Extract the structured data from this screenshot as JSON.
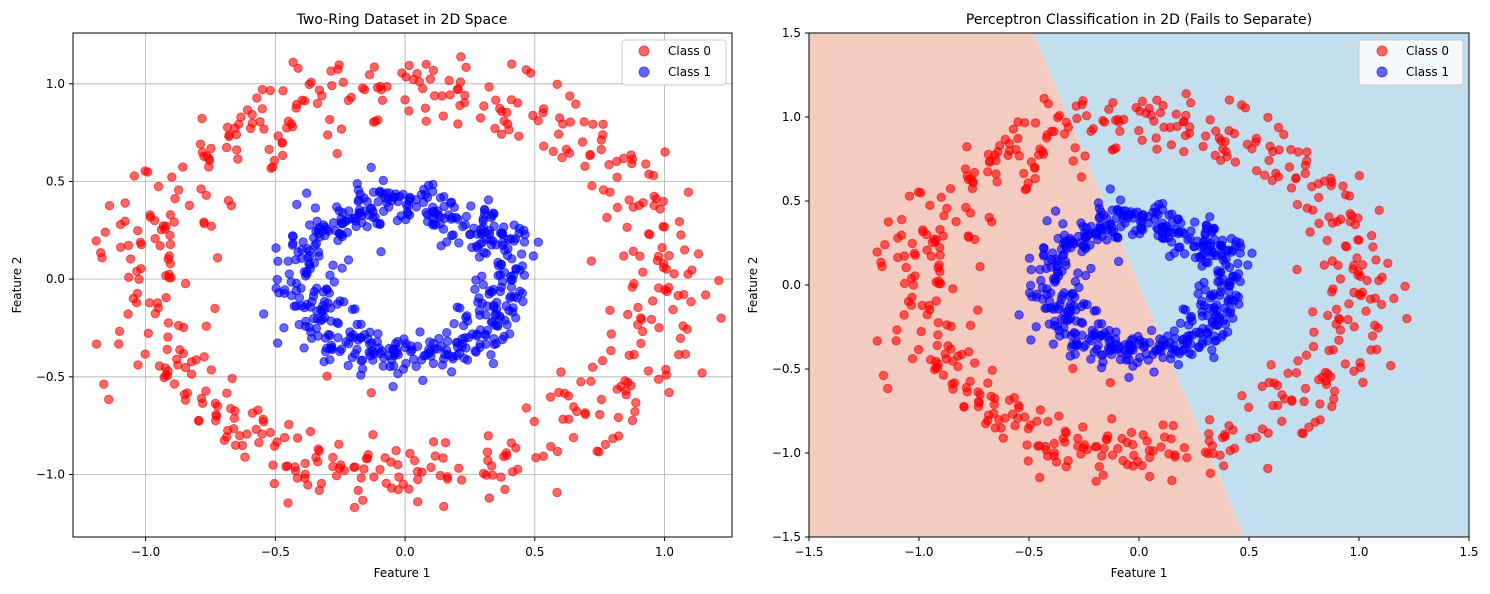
{
  "chart_data": [
    {
      "type": "scatter",
      "title": "Two-Ring Dataset in 2D Space",
      "xlabel": "Feature 1",
      "ylabel": "Feature 2",
      "xlim": [
        -1.28,
        1.26
      ],
      "ylim": [
        -1.32,
        1.26
      ],
      "xticks": [
        -1.0,
        -0.5,
        0.0,
        0.5,
        1.0
      ],
      "xtick_labels": [
        "−1.0",
        "−0.5",
        "0.0",
        "0.5",
        "1.0"
      ],
      "yticks": [
        -1.0,
        -0.5,
        0.0,
        0.5,
        1.0
      ],
      "ytick_labels": [
        "−1.0",
        "−0.5",
        "0.0",
        "0.5",
        "1.0"
      ],
      "grid": true,
      "legend": "top-right",
      "series": [
        {
          "name": "Class 0",
          "color": "#ff0000",
          "shape": "ring",
          "radius_mean": 1.0,
          "radius_spread": 0.1,
          "count": 500
        },
        {
          "name": "Class 1",
          "color": "#0000ff",
          "shape": "ring",
          "radius_mean": 0.4,
          "radius_spread": 0.06,
          "count": 500
        }
      ]
    },
    {
      "type": "scatter",
      "title": "Perceptron Classification in 2D (Fails to Separate)",
      "xlabel": "Feature 1",
      "ylabel": "Feature 2",
      "xlim": [
        -1.5,
        1.5
      ],
      "ylim": [
        -1.5,
        1.5
      ],
      "xticks": [
        -1.5,
        -1.0,
        -0.5,
        0.0,
        0.5,
        1.0,
        1.5
      ],
      "xtick_labels": [
        "−1.5",
        "−1.0",
        "−0.5",
        "0.0",
        "0.5",
        "1.0",
        "1.5"
      ],
      "yticks": [
        -1.5,
        -1.0,
        -0.5,
        0.0,
        0.5,
        1.0,
        1.5
      ],
      "ytick_labels": [
        "−1.5",
        "−1.0",
        "−0.5",
        "0.0",
        "0.5",
        "1.0",
        "1.5"
      ],
      "grid": false,
      "legend": "top-right",
      "decision_boundary": {
        "points": [
          [
            -0.48,
            1.5
          ],
          [
            0.48,
            -1.5
          ]
        ],
        "left_region_color": "#f4cbc0",
        "right_region_color": "#c3dfed"
      },
      "series": [
        {
          "name": "Class 0",
          "color": "#ff0000",
          "shape": "ring",
          "radius_mean": 1.0,
          "radius_spread": 0.1,
          "count": 500
        },
        {
          "name": "Class 1",
          "color": "#0000ff",
          "shape": "ring",
          "radius_mean": 0.4,
          "radius_spread": 0.06,
          "count": 500
        }
      ]
    }
  ]
}
